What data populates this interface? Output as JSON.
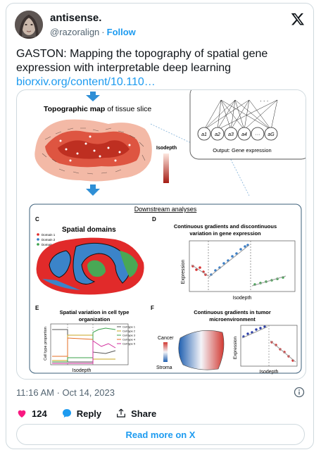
{
  "author": {
    "display_name": "antisense.",
    "handle": "@razoralign",
    "follow_label": "Follow"
  },
  "tweet": {
    "text": "GASTON: Mapping the topography of spatial gene expression with interpretable deep learning",
    "link": "biorxiv.org/content/10.110…"
  },
  "figure": {
    "top_title_bold": "Topographic map",
    "top_title_rest": " of tissue slice",
    "isodepth_label": "Isodepth",
    "output_label": "Output: Gene expression",
    "nodes": [
      "a1",
      "a2",
      "a3",
      "a4",
      "···",
      "aG"
    ],
    "downstream": "Downstream analyses",
    "panel_c": {
      "letter": "C",
      "title": "Spatial domains",
      "legend": [
        "Domain 1",
        "Domain 2",
        "Domain 3"
      ]
    },
    "panel_d": {
      "letter": "D",
      "title_line1": "Continuous gradients and discontinuous",
      "title_line2": "variation in gene expression",
      "ylabel": "Expression",
      "xlabel": "Isodepth"
    },
    "panel_e": {
      "letter": "E",
      "title_line1": "Spatial variation in cell type",
      "title_line2": "organization",
      "ylabel": "Cell type proportion",
      "xlabel": "Isodepth",
      "legend": [
        "Cell type 1",
        "Cell type 2",
        "Cell type 3",
        "Cell type 4",
        "Cell type 5"
      ]
    },
    "panel_f": {
      "letter": "F",
      "title_line1": "Continuous gradients in tumor",
      "title_line2": "microenvironment",
      "cancer": "Cancer",
      "stroma": "Stroma",
      "ylabel": "Expression",
      "xlabel": "Isodepth"
    }
  },
  "meta": {
    "timestamp": "11:16 AM · Oct 14, 2023"
  },
  "actions": {
    "likes": "124",
    "reply": "Reply",
    "share": "Share"
  },
  "read_more": "Read more on X",
  "colors": {
    "accent": "#1d9bf0",
    "like": "#f91880"
  }
}
